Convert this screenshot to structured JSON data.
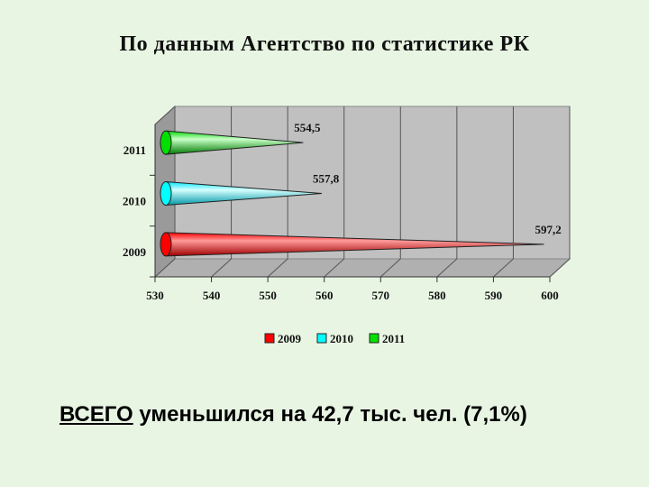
{
  "title": "По данным Агентство по статистике РК",
  "chart_data": {
    "type": "bar",
    "orientation": "horizontal",
    "style": "3d-cone",
    "categories": [
      "2009",
      "2010",
      "2011"
    ],
    "values": [
      597.2,
      557.8,
      554.5
    ],
    "data_labels": [
      "597,2",
      "557,8",
      "554,5"
    ],
    "x_ticks": [
      "530",
      "540",
      "550",
      "560",
      "570",
      "580",
      "590",
      "600"
    ],
    "xlim": [
      530,
      600
    ],
    "grid": true,
    "legend": {
      "position": "bottom",
      "entries": [
        {
          "label": "2009",
          "color": "#ff0000"
        },
        {
          "label": "2010",
          "color": "#00ffff"
        },
        {
          "label": "2011",
          "color": "#00e000"
        }
      ]
    },
    "colors": {
      "2009": "#ff0000",
      "2010": "#00ffff",
      "2011": "#00e000"
    }
  },
  "footer": {
    "highlight": "ВСЕГО",
    "rest": " уменьшился на 42,7 тыс. чел. (7,1%)"
  }
}
